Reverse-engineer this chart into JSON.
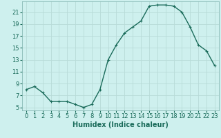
{
  "x": [
    0,
    1,
    2,
    3,
    4,
    5,
    6,
    7,
    8,
    9,
    10,
    11,
    12,
    13,
    14,
    15,
    16,
    17,
    18,
    19,
    20,
    21,
    22,
    23
  ],
  "y": [
    8,
    8.5,
    7.5,
    6,
    6,
    6,
    5.5,
    5,
    5.5,
    8,
    13,
    15.5,
    17.5,
    18.5,
    19.5,
    22,
    22.2,
    22.2,
    22,
    21,
    18.5,
    15.5,
    14.5,
    12
  ],
  "line_color": "#1a6b5a",
  "marker": "+",
  "marker_size": 3,
  "background_color": "#cef0ee",
  "grid_color": "#b8dbd8",
  "xlabel": "Humidex (Indice chaleur)",
  "xlim": [
    -0.5,
    23.5
  ],
  "ylim": [
    4.5,
    22.8
  ],
  "yticks": [
    5,
    7,
    9,
    11,
    13,
    15,
    17,
    19,
    21
  ],
  "xticks": [
    0,
    1,
    2,
    3,
    4,
    5,
    6,
    7,
    8,
    9,
    10,
    11,
    12,
    13,
    14,
    15,
    16,
    17,
    18,
    19,
    20,
    21,
    22,
    23
  ],
  "xlabel_fontsize": 7,
  "tick_fontsize": 6,
  "line_width": 1.0,
  "marker_edge_width": 0.8
}
